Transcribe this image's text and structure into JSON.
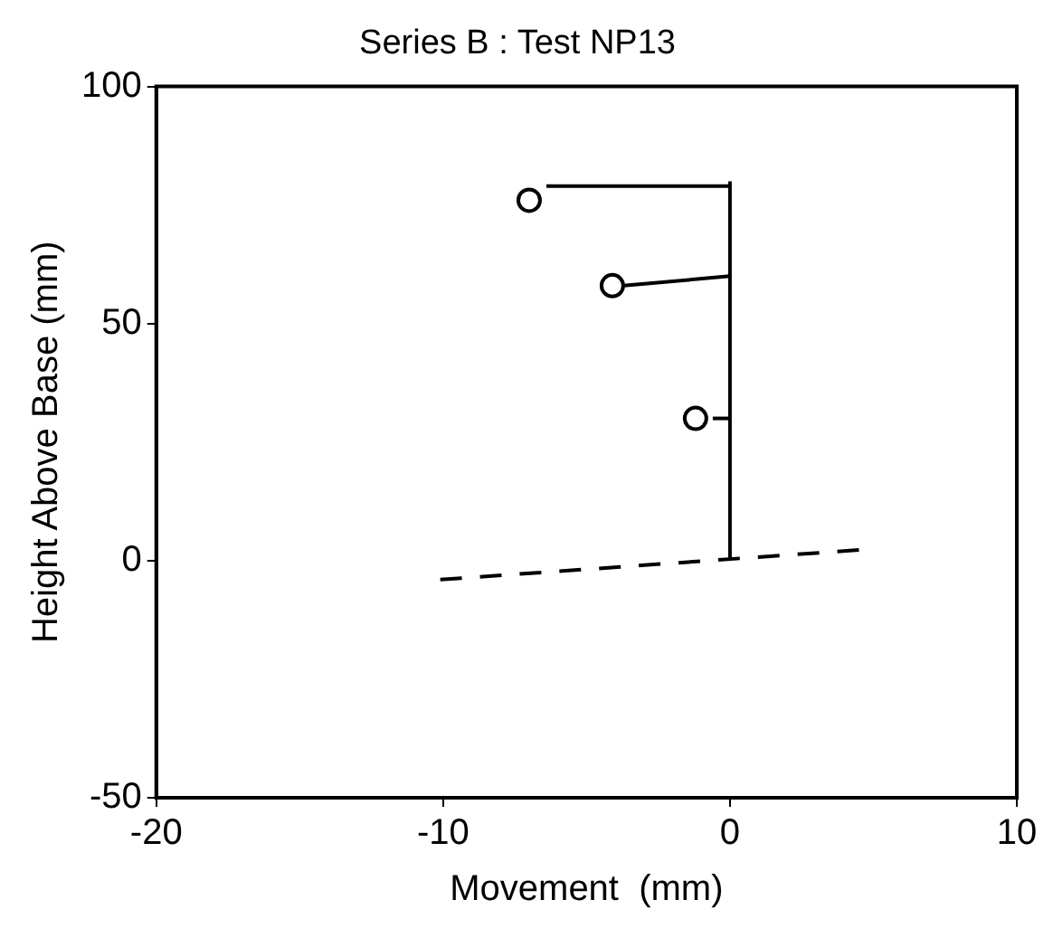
{
  "chart_data": {
    "type": "line",
    "title": "Series B : Test NP13",
    "xlabel": "Movement  (mm)",
    "ylabel": "Height Above Base (mm)",
    "xlim": [
      -20,
      10
    ],
    "xticks": [
      -20,
      -10,
      0,
      10
    ],
    "ylim": [
      -50,
      100
    ],
    "yticks": [
      -50,
      0,
      50,
      100
    ],
    "grid": false,
    "legend": false,
    "marker": "none",
    "series": [
      {
        "color": "#000000",
        "x": [
          0,
          0
        ],
        "values": [
          0.5,
          80
        ]
      },
      {
        "color": "#000000",
        "x": [
          0,
          -6.4
        ],
        "values": [
          79,
          79
        ]
      },
      {
        "color": "#000000",
        "x": [
          0,
          -3.7
        ],
        "values": [
          60,
          58
        ]
      },
      {
        "color": "#000000",
        "x": [
          0,
          -0.6
        ],
        "values": [
          30,
          30
        ]
      },
      {
        "type": "scatter",
        "marker": "circle",
        "color": "#000000",
        "x": [
          -7,
          -4.1,
          -1.2
        ],
        "values": [
          76,
          58,
          30
        ]
      },
      {
        "color": "#000000",
        "line_style": "dashed",
        "x": [
          -10.1,
          4.6
        ],
        "values": [
          -4,
          2.3
        ]
      }
    ]
  }
}
